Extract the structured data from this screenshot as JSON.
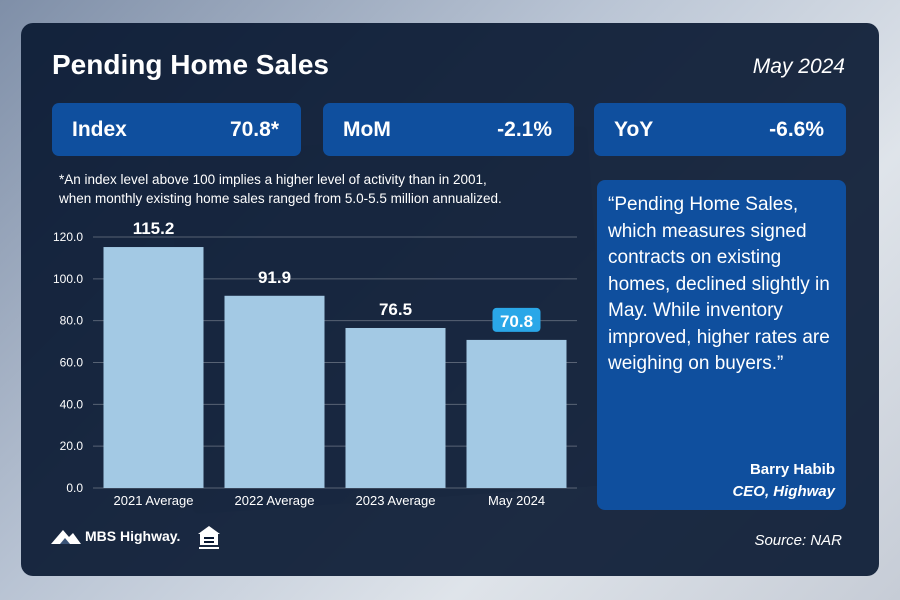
{
  "title": "Pending Home Sales",
  "date": "May 2024",
  "stats": [
    {
      "label": "Index",
      "value": "70.8*"
    },
    {
      "label": "MoM",
      "value": "-2.1%"
    },
    {
      "label": "YoY",
      "value": "-6.6%"
    }
  ],
  "footnote_line1": "*An index level above 100 implies a higher level of activity than in 2001,",
  "footnote_line2": "when monthly existing home sales ranged from 5.0-5.5 million annualized.",
  "quote": "“Pending Home Sales, which measures signed contracts on existing homes, declined slightly in May. While inventory improved, higher rates are weighing on buyers.”",
  "quote_author": "Barry Habib",
  "quote_role": "CEO, Highway",
  "source": "Source: NAR",
  "logo_text": "MBS Highway.",
  "colors": {
    "bar": "#a3c9e4",
    "highlight": "#2aa7e8",
    "panel": "#0f4f9e"
  },
  "chart_data": {
    "type": "bar",
    "categories": [
      "2021 Average",
      "2022 Average",
      "2023 Average",
      "May 2024"
    ],
    "values": [
      115.2,
      91.9,
      76.5,
      70.8
    ],
    "value_labels": [
      "115.2",
      "91.9",
      "76.5",
      "70.8"
    ],
    "highlight_index": 3,
    "yticks": [
      "0.0",
      "20.0",
      "40.0",
      "60.0",
      "80.0",
      "100.0",
      "120.0"
    ],
    "ylim": [
      0,
      120
    ],
    "grid": true
  }
}
